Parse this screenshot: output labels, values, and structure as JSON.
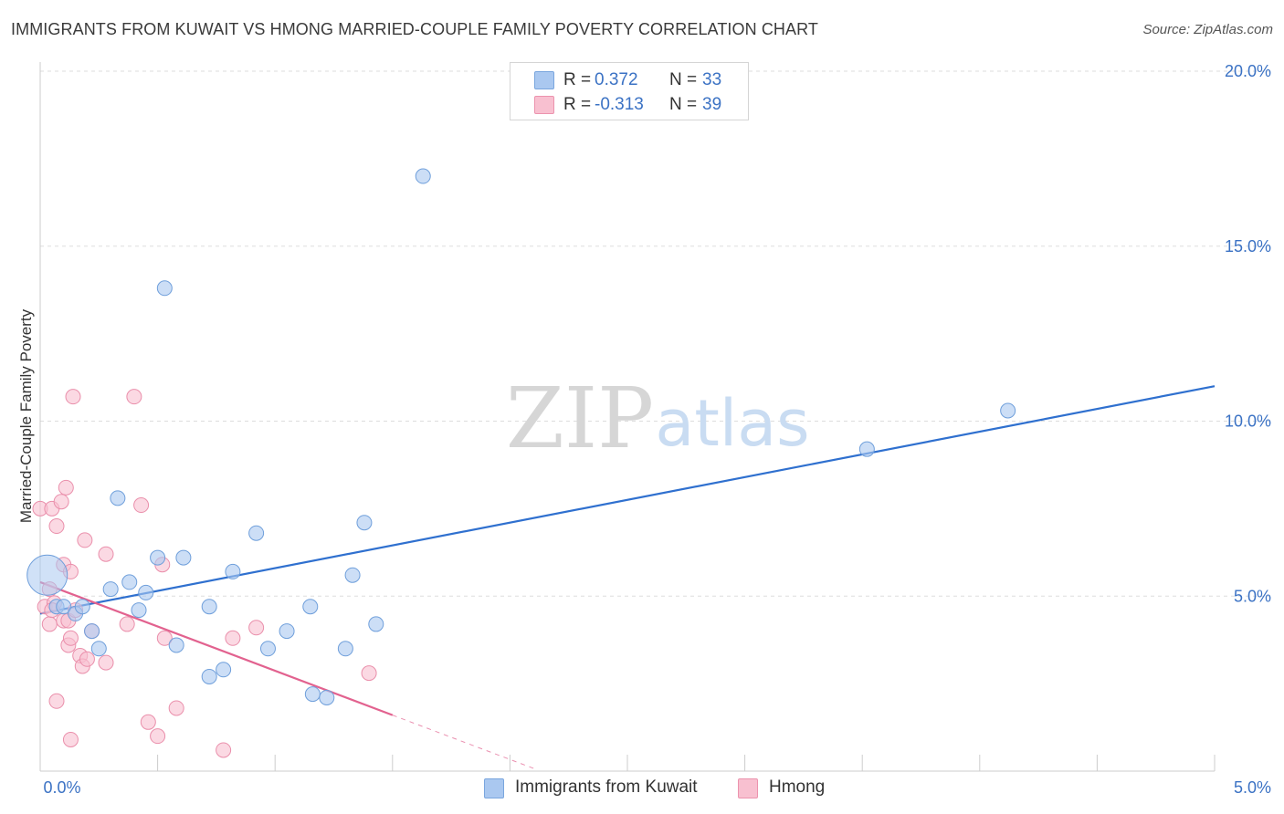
{
  "title": "IMMIGRANTS FROM KUWAIT VS HMONG MARRIED-COUPLE FAMILY POVERTY CORRELATION CHART",
  "source": "Source: ZipAtlas.com",
  "watermark": {
    "zip": "ZIP",
    "atlas": "atlas"
  },
  "legend": {
    "items": [
      {
        "r_label": "R =",
        "r_value": "0.372",
        "n_label": "N =",
        "n_value": "33",
        "color": "#aac8f0",
        "border": "#7aa6de"
      },
      {
        "r_label": "R =",
        "r_value": "-0.313",
        "n_label": "N =",
        "n_value": "39",
        "color": "#f8c0d0",
        "border": "#ec93ae"
      }
    ]
  },
  "bottom_legend": {
    "series1": "Immigrants from Kuwait",
    "series2": "Hmong"
  },
  "colors": {
    "kuwait_fill": "#aac8f0",
    "kuwait_stroke": "#6f9fdb",
    "kuwait_line": "#2f70cf",
    "hmong_fill": "#f8c0d0",
    "hmong_stroke": "#ea8fab",
    "hmong_line": "#e2628f",
    "tick_text": "#3b72c4",
    "grid": "#dddddd"
  },
  "chart_data": {
    "type": "scatter",
    "title": "IMMIGRANTS FROM KUWAIT VS HMONG MARRIED-COUPLE FAMILY POVERTY CORRELATION CHART",
    "xlabel": "",
    "ylabel": "Married-Couple Family Poverty",
    "xlim": [
      0,
      5
    ],
    "ylim": [
      0,
      20
    ],
    "x_tick_labels": [
      "0.0%",
      "5.0%"
    ],
    "y_ticks": [
      5,
      10,
      15,
      20
    ],
    "y_tick_labels": [
      "5.0%",
      "10.0%",
      "15.0%",
      "20.0%"
    ],
    "grid": true,
    "series": [
      {
        "name": "Immigrants from Kuwait",
        "points": [
          [
            0.03,
            5.6,
            "large"
          ],
          [
            0.07,
            4.7
          ],
          [
            0.1,
            4.7
          ],
          [
            0.15,
            4.5
          ],
          [
            0.18,
            4.7
          ],
          [
            0.22,
            4.0
          ],
          [
            0.25,
            3.5
          ],
          [
            0.3,
            5.2
          ],
          [
            0.33,
            7.8
          ],
          [
            0.38,
            5.4
          ],
          [
            0.42,
            4.6
          ],
          [
            0.45,
            5.1
          ],
          [
            0.5,
            6.1
          ],
          [
            0.53,
            13.8
          ],
          [
            0.58,
            3.6
          ],
          [
            0.61,
            6.1
          ],
          [
            0.72,
            4.7
          ],
          [
            0.72,
            2.7
          ],
          [
            0.78,
            2.9
          ],
          [
            0.82,
            5.7
          ],
          [
            0.92,
            6.8
          ],
          [
            0.97,
            3.5
          ],
          [
            1.05,
            4.0
          ],
          [
            1.15,
            4.7
          ],
          [
            1.16,
            2.2
          ],
          [
            1.22,
            2.1
          ],
          [
            1.3,
            3.5
          ],
          [
            1.33,
            5.6
          ],
          [
            1.38,
            7.1
          ],
          [
            1.43,
            4.2
          ],
          [
            1.63,
            17.0
          ],
          [
            3.52,
            9.2
          ],
          [
            4.12,
            10.3
          ]
        ],
        "trend": {
          "x0": 0,
          "y0": 4.5,
          "x1": 5,
          "y1": 11.0
        }
      },
      {
        "name": "Hmong",
        "points": [
          [
            0.0,
            7.5
          ],
          [
            0.02,
            4.7
          ],
          [
            0.04,
            4.2
          ],
          [
            0.04,
            5.2
          ],
          [
            0.05,
            7.5
          ],
          [
            0.06,
            4.8
          ],
          [
            0.07,
            7.0
          ],
          [
            0.07,
            2.0
          ],
          [
            0.09,
            7.7
          ],
          [
            0.1,
            5.9
          ],
          [
            0.1,
            4.3
          ],
          [
            0.11,
            8.1
          ],
          [
            0.12,
            4.3
          ],
          [
            0.12,
            3.6
          ],
          [
            0.13,
            5.7
          ],
          [
            0.13,
            3.8
          ],
          [
            0.13,
            0.9
          ],
          [
            0.14,
            10.7
          ],
          [
            0.15,
            4.6
          ],
          [
            0.17,
            3.3
          ],
          [
            0.18,
            3.0
          ],
          [
            0.19,
            6.6
          ],
          [
            0.2,
            3.2
          ],
          [
            0.22,
            4.0
          ],
          [
            0.28,
            6.2
          ],
          [
            0.28,
            3.1
          ],
          [
            0.37,
            4.2
          ],
          [
            0.4,
            10.7
          ],
          [
            0.43,
            7.6
          ],
          [
            0.46,
            1.4
          ],
          [
            0.5,
            1.0
          ],
          [
            0.52,
            5.9
          ],
          [
            0.53,
            3.8
          ],
          [
            0.58,
            1.8
          ],
          [
            0.78,
            0.6
          ],
          [
            0.82,
            3.8
          ],
          [
            0.92,
            4.1
          ],
          [
            1.4,
            2.8
          ],
          [
            0.05,
            4.6
          ]
        ],
        "trend": {
          "x0": 0,
          "y0": 5.4,
          "x1": 1.5,
          "y1": 1.6,
          "dash_to_x": 2.1
        }
      }
    ]
  }
}
